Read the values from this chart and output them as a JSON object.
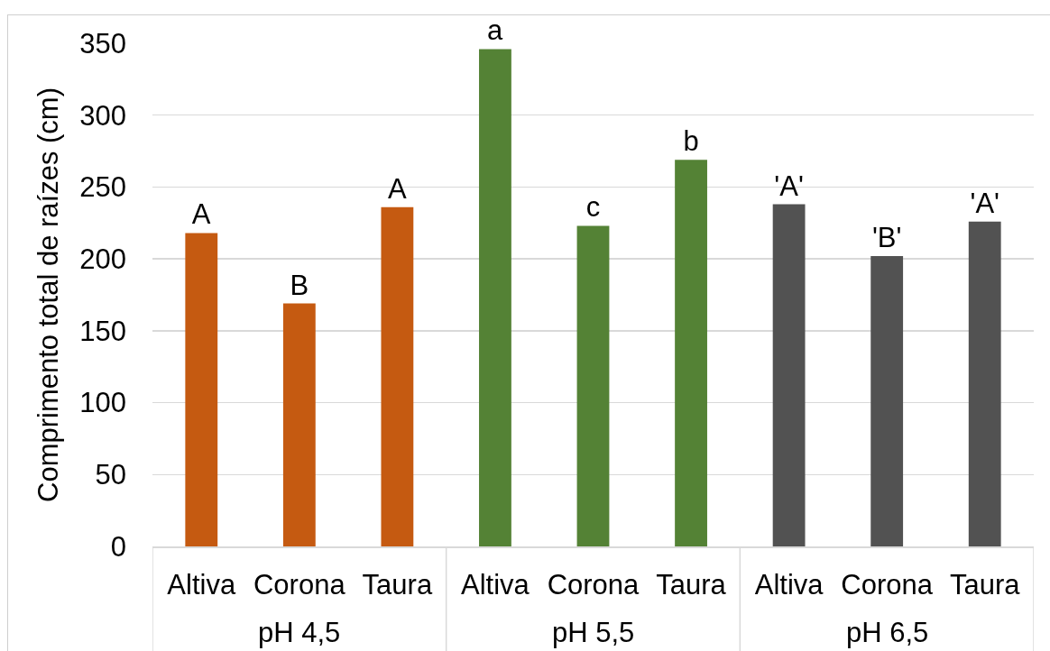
{
  "chart_data": {
    "type": "bar",
    "ylabel": "Comprimento total de raízes (cm)",
    "categories": [
      "Altiva",
      "Corona",
      "Taura",
      "Altiva",
      "Corona",
      "Taura",
      "Altiva",
      "Corona",
      "Taura"
    ],
    "series": [
      {
        "name": "pH 4,5",
        "color": "#c55a11",
        "values": [
          218,
          169,
          236,
          null,
          null,
          null,
          null,
          null,
          null
        ],
        "value_labels": [
          "A",
          "B",
          "A",
          null,
          null,
          null,
          null,
          null,
          null
        ]
      },
      {
        "name": "pH 5,5",
        "color": "#548235",
        "values": [
          null,
          null,
          null,
          346,
          223,
          269,
          null,
          null,
          null
        ],
        "value_labels": [
          null,
          null,
          null,
          "a",
          "c",
          "b",
          null,
          null,
          null
        ]
      },
      {
        "name": "pH 6,5",
        "color": "#525252",
        "values": [
          null,
          null,
          null,
          null,
          null,
          null,
          238,
          202,
          226
        ],
        "value_labels": [
          null,
          null,
          null,
          null,
          null,
          null,
          "'A'",
          "'B'",
          "'A'"
        ]
      }
    ],
    "ylim": [
      0,
      350
    ],
    "yticks": [
      0,
      50,
      100,
      150,
      200,
      250,
      300,
      350
    ],
    "grid": "y",
    "legend": false
  }
}
